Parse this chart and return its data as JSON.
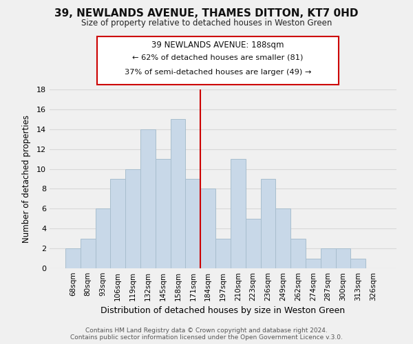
{
  "title": "39, NEWLANDS AVENUE, THAMES DITTON, KT7 0HD",
  "subtitle": "Size of property relative to detached houses in Weston Green",
  "xlabel": "Distribution of detached houses by size in Weston Green",
  "ylabel": "Number of detached properties",
  "footer_line1": "Contains HM Land Registry data © Crown copyright and database right 2024.",
  "footer_line2": "Contains public sector information licensed under the Open Government Licence v.3.0.",
  "bin_labels": [
    "68sqm",
    "80sqm",
    "93sqm",
    "106sqm",
    "119sqm",
    "132sqm",
    "145sqm",
    "158sqm",
    "171sqm",
    "184sqm",
    "197sqm",
    "210sqm",
    "223sqm",
    "236sqm",
    "249sqm",
    "262sqm",
    "274sqm",
    "287sqm",
    "300sqm",
    "313sqm",
    "326sqm"
  ],
  "bar_values": [
    2,
    3,
    6,
    9,
    10,
    14,
    11,
    15,
    9,
    8,
    3,
    11,
    5,
    9,
    6,
    3,
    1,
    2,
    2,
    1,
    0
  ],
  "bar_color": "#c8d8e8",
  "bar_edge_color": "#a8bece",
  "vline_x": 8.5,
  "vline_color": "#cc0000",
  "annotation_title": "39 NEWLANDS AVENUE: 188sqm",
  "annotation_line1": "← 62% of detached houses are smaller (81)",
  "annotation_line2": "37% of semi-detached houses are larger (49) →",
  "annotation_box_facecolor": "#ffffff",
  "annotation_box_edgecolor": "#cc0000",
  "ylim": [
    0,
    18
  ],
  "yticks": [
    0,
    2,
    4,
    6,
    8,
    10,
    12,
    14,
    16,
    18
  ],
  "grid_color": "#d8d8d8",
  "background_color": "#f0f0f0",
  "title_fontsize": 11,
  "subtitle_fontsize": 8.5,
  "xlabel_fontsize": 9,
  "ylabel_fontsize": 8.5,
  "tick_fontsize": 7.5,
  "footer_fontsize": 6.5
}
